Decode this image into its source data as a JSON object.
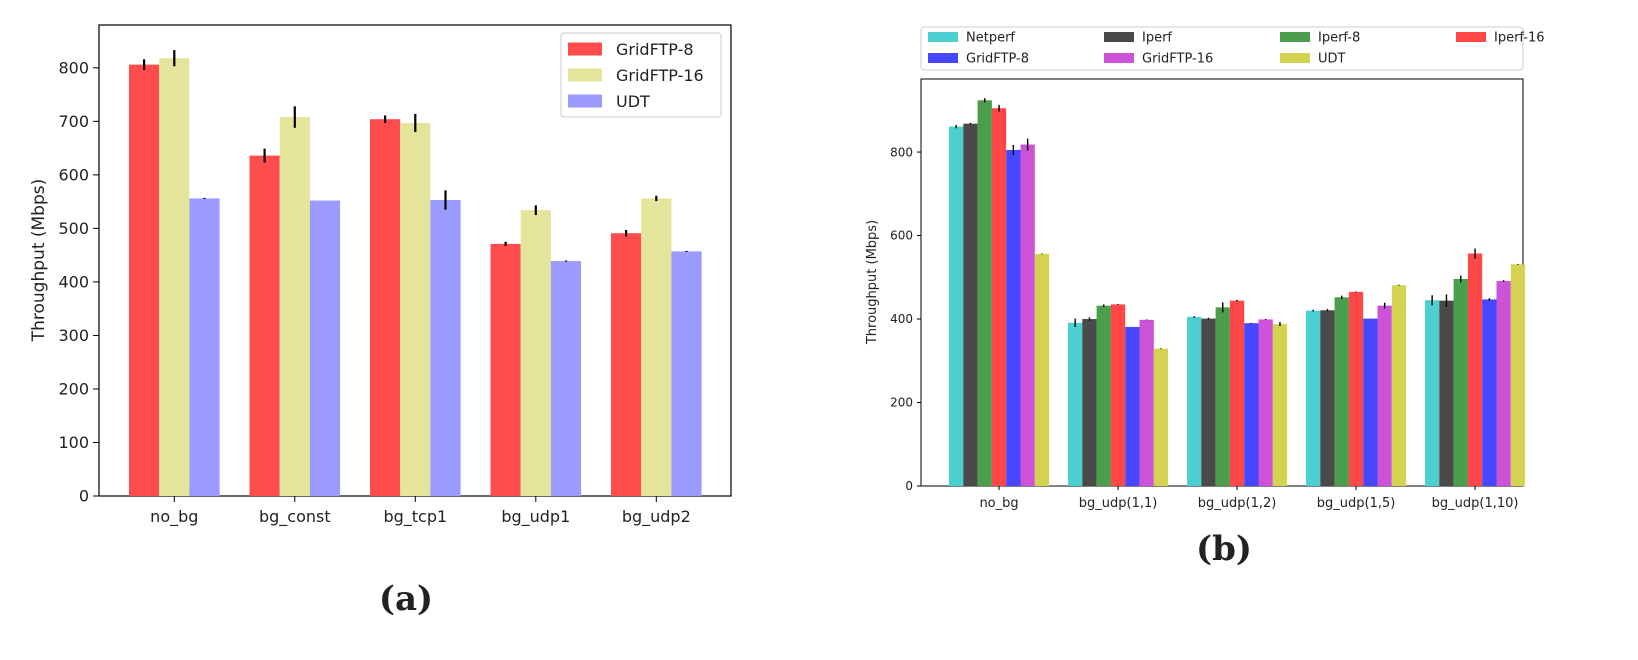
{
  "chart_data": [
    {
      "type": "bar",
      "panel_label": "(a)",
      "ylabel": "Throughput (Mbps)",
      "xlabel": "",
      "ylim": [
        0,
        880
      ],
      "yticks": [
        0,
        100,
        200,
        300,
        400,
        500,
        600,
        700,
        800
      ],
      "categories": [
        "no_bg",
        "bg_const",
        "bg_tcp1",
        "bg_udp1",
        "bg_udp2"
      ],
      "legend_position": "top-right",
      "grid": false,
      "series": [
        {
          "name": "GridFTP-8",
          "color": "#ff4d4d",
          "values": [
            806,
            636,
            704,
            471,
            491
          ],
          "errors": [
            10,
            13,
            7,
            4,
            6
          ]
        },
        {
          "name": "GridFTP-16",
          "color": "#e4e49b",
          "values": [
            818,
            708,
            697,
            534,
            556
          ],
          "errors": [
            15,
            20,
            17,
            9,
            5
          ]
        },
        {
          "name": "UDT",
          "color": "#9b9bff",
          "values": [
            556,
            552,
            553,
            439,
            457
          ],
          "errors": [
            1,
            0,
            18,
            1,
            1
          ]
        }
      ]
    },
    {
      "type": "bar",
      "panel_label": "(b)",
      "ylabel": "Throughput (Mbps)",
      "xlabel": "",
      "ylim": [
        0,
        975
      ],
      "yticks": [
        0,
        200,
        400,
        600,
        800
      ],
      "categories": [
        "no_bg",
        "bg_udp(1,1)",
        "bg_udp(1,2)",
        "bg_udp(1,5)",
        "bg_udp(1,10)"
      ],
      "legend_position": "top (outside, 4 columns)",
      "grid": false,
      "series": [
        {
          "name": "Netperf",
          "color": "#4bcfd1",
          "values": [
            861,
            391,
            405,
            420,
            445
          ],
          "errors": [
            4,
            10,
            2,
            2,
            12
          ]
        },
        {
          "name": "Iperf",
          "color": "#4a4a4a",
          "values": [
            868,
            400,
            401,
            421,
            444
          ],
          "errors": [
            2,
            4,
            2,
            3,
            15
          ]
        },
        {
          "name": "Iperf-8",
          "color": "#4b9e4b",
          "values": [
            924,
            432,
            428,
            452,
            496
          ],
          "errors": [
            5,
            3,
            12,
            4,
            8
          ]
        },
        {
          "name": "Iperf-16",
          "color": "#ff4747",
          "values": [
            905,
            435,
            444,
            465,
            557
          ],
          "errors": [
            8,
            1,
            2,
            1,
            12
          ]
        },
        {
          "name": "GridFTP-8",
          "color": "#4747ff",
          "values": [
            805,
            381,
            390,
            401,
            447
          ],
          "errors": [
            12,
            0,
            1,
            0,
            3
          ]
        },
        {
          "name": "GridFTP-16",
          "color": "#cc52d8",
          "values": [
            818,
            398,
            399,
            432,
            491
          ],
          "errors": [
            14,
            1,
            1,
            7,
            2
          ]
        },
        {
          "name": "UDT",
          "color": "#d3d351",
          "values": [
            556,
            329,
            388,
            481,
            531
          ],
          "errors": [
            1,
            1,
            5,
            1,
            1
          ]
        }
      ]
    }
  ]
}
